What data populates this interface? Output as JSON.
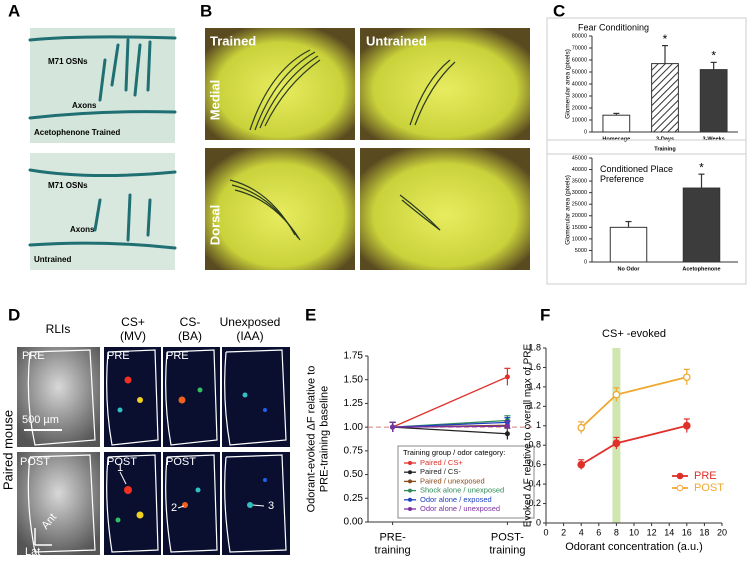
{
  "figure": {
    "panel_labels": [
      "A",
      "B",
      "C",
      "D",
      "E",
      "F"
    ],
    "panel_a": {
      "top_labels": [
        "M71 OSNs",
        "Axons"
      ],
      "top_caption": "Acetophenone Trained",
      "bottom_labels": [
        "M71 OSNs",
        "Axons"
      ],
      "bottom_caption": "Untrained"
    },
    "panel_b": {
      "columns": [
        "Trained",
        "Untrained"
      ],
      "rows": [
        "Medial",
        "Dorsal"
      ]
    },
    "panel_d": {
      "columns": [
        "RLIs",
        "CS+\n(MV)",
        "CS-\n(BA)",
        "Unexposed\n(IAA)"
      ],
      "rows": [
        "PRE",
        "POST"
      ],
      "side_label": "Paired mouse",
      "scale_bar": "500 µm",
      "axes": [
        "Ant",
        "Lat"
      ],
      "arrow_numbers": [
        "1",
        "2",
        "3"
      ]
    }
  },
  "chart_data": [
    {
      "type": "bar",
      "title": "Fear Conditioning",
      "ylabel": "Glomerular area (pixels)",
      "xlabel": "Training",
      "categories": [
        "Homecage",
        "3-Days",
        "3-Weeks"
      ],
      "values": [
        14000,
        57000,
        52000
      ],
      "errors": [
        1500,
        15000,
        6000
      ],
      "colors": [
        "#ffffff",
        "#ffffff",
        "#3c3c3c"
      ],
      "hatched": [
        false,
        true,
        false
      ],
      "markers": [
        null,
        "*",
        "*"
      ],
      "ylim": [
        0,
        80000
      ],
      "yticks": [
        0,
        10000,
        20000,
        30000,
        40000,
        50000,
        60000,
        70000,
        80000
      ]
    },
    {
      "type": "bar",
      "title": "Conditioned Place\nPreference",
      "ylabel": "Glomerular area (pixels)",
      "categories": [
        "No Odor",
        "Acetophenone"
      ],
      "values": [
        15000,
        32000
      ],
      "errors": [
        2500,
        6000
      ],
      "colors": [
        "#ffffff",
        "#3c3c3c"
      ],
      "hatched": [
        false,
        false
      ],
      "markers": [
        null,
        "*"
      ],
      "ylim": [
        0,
        45000
      ],
      "yticks": [
        0,
        5000,
        10000,
        15000,
        20000,
        25000,
        30000,
        35000,
        40000,
        45000
      ]
    },
    {
      "type": "line",
      "ylabel": "Odorant-evoked ΔF relative to\nPRE-training baseline",
      "categories": [
        "PRE-\ntraining",
        "POST-\ntraining"
      ],
      "legend_title": "Training group / odor category:",
      "reference_line": 1,
      "series": [
        {
          "name": "Paired / CS+",
          "color": "#e0302a",
          "values": [
            1.0,
            1.53
          ],
          "errors": [
            0.05,
            0.09
          ]
        },
        {
          "name": "Paired / CS-",
          "color": "#222222",
          "values": [
            1.0,
            0.93
          ],
          "errors": [
            0.05,
            0.06
          ]
        },
        {
          "name": "Paired / unexposed",
          "color": "#8b4a1c",
          "values": [
            1.0,
            1.02
          ],
          "errors": [
            0.05,
            0.05
          ]
        },
        {
          "name": "Shock alone / unexposed",
          "color": "#2e8b57",
          "values": [
            1.0,
            1.07
          ],
          "errors": [
            0.05,
            0.05
          ]
        },
        {
          "name": "Odor alone / exposed",
          "color": "#2040c0",
          "values": [
            1.0,
            1.05
          ],
          "errors": [
            0.05,
            0.05
          ]
        },
        {
          "name": "Odor alone / unexposed",
          "color": "#7b2fa0",
          "values": [
            1.0,
            1.01
          ],
          "errors": [
            0.05,
            0.05
          ]
        }
      ],
      "ylim": [
        0,
        1.75
      ],
      "yticks": [
        {
          "value": 0,
          "label": "0.00"
        },
        0.25,
        {
          "value": 0.5,
          "label": "0.50"
        },
        0.75,
        {
          "value": 1,
          "label": "1.00"
        },
        1.25,
        {
          "value": 1.5,
          "label": "1.50"
        },
        1.75
      ]
    },
    {
      "type": "xyline",
      "title": "CS+ -evoked",
      "ylabel": "Evoked ΔF relative to overall max of PRE",
      "xlabel": "Odorant concentration (a.u.)",
      "x": [
        4,
        8,
        16
      ],
      "highlight_x": 8,
      "series": [
        {
          "name": "PRE",
          "color": "#e0302a",
          "filled": true,
          "values": [
            0.6,
            0.82,
            1.0
          ],
          "errors": [
            0.05,
            0.06,
            0.07
          ]
        },
        {
          "name": "POST",
          "color": "#f0a830",
          "filled": false,
          "values": [
            0.98,
            1.32,
            1.5
          ],
          "errors": [
            0.06,
            0.07,
            0.08
          ]
        }
      ],
      "xlim": [
        0,
        20
      ],
      "xticks": [
        0,
        2,
        4,
        6,
        8,
        10,
        12,
        14,
        16,
        18,
        20
      ],
      "ylim": [
        0,
        1.8
      ],
      "yticks": [
        0,
        0.2,
        0.4,
        0.6,
        0.8,
        1,
        1.2,
        1.4,
        1.6,
        1.8
      ]
    }
  ]
}
